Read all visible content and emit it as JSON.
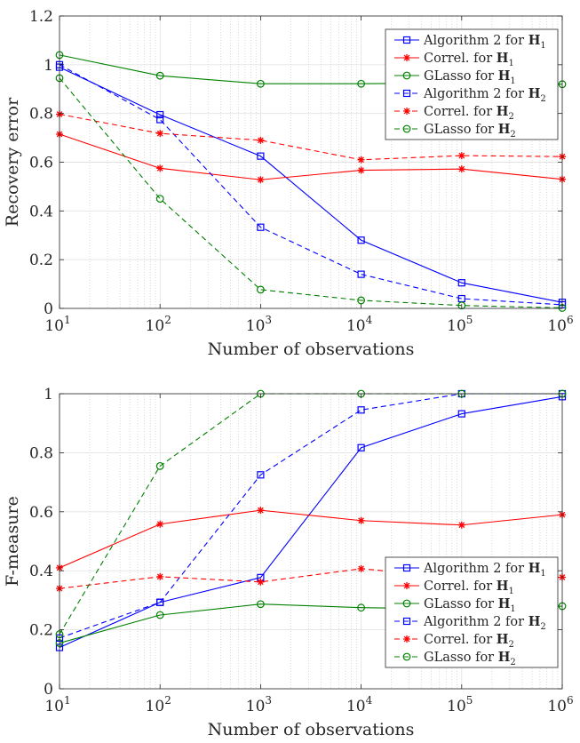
{
  "chart_data": [
    {
      "type": "line",
      "xlabel": "Number of observations",
      "ylabel": "Recovery error",
      "xscale": "log",
      "xlim": [
        10,
        1000000
      ],
      "ylim": [
        0,
        1.2
      ],
      "x_ticks": [
        {
          "value": 10,
          "base": "10",
          "exp": "1"
        },
        {
          "value": 100,
          "base": "10",
          "exp": "2"
        },
        {
          "value": 1000,
          "base": "10",
          "exp": "3"
        },
        {
          "value": 10000,
          "base": "10",
          "exp": "4"
        },
        {
          "value": 100000,
          "base": "10",
          "exp": "5"
        },
        {
          "value": 1000000,
          "base": "10",
          "exp": "6"
        }
      ],
      "y_ticks": [
        {
          "value": 0,
          "label": "0"
        },
        {
          "value": 0.2,
          "label": "0.2"
        },
        {
          "value": 0.4,
          "label": "0.4"
        },
        {
          "value": 0.6,
          "label": "0.6"
        },
        {
          "value": 0.8,
          "label": "0.8"
        },
        {
          "value": 1,
          "label": "1"
        },
        {
          "value": 1.2,
          "label": "1.2"
        }
      ],
      "grid": true,
      "legend_position": "top-right",
      "x": [
        10,
        100,
        1000,
        10000,
        100000,
        1000000
      ],
      "series": [
        {
          "name": "Algorithm 2 for",
          "bold": "H",
          "sub": "1",
          "color": "#0000ff",
          "dash": "solid",
          "marker": "square",
          "values": [
            0.99,
            0.795,
            0.625,
            0.28,
            0.105,
            0.025
          ]
        },
        {
          "name": "Correl. for",
          "bold": "H",
          "sub": "1",
          "color": "#ff0000",
          "dash": "solid",
          "marker": "star",
          "values": [
            0.715,
            0.575,
            0.528,
            0.567,
            0.572,
            0.53
          ]
        },
        {
          "name": "GLasso for",
          "bold": "H",
          "sub": "1",
          "color": "#008000",
          "dash": "solid",
          "marker": "circle",
          "values": [
            1.04,
            0.955,
            0.922,
            0.922,
            0.925,
            0.92
          ]
        },
        {
          "name": "Algorithm 2 for",
          "bold": "H",
          "sub": "2",
          "color": "#0000ff",
          "dash": "dashed",
          "marker": "square",
          "values": [
            1.0,
            0.775,
            0.333,
            0.14,
            0.04,
            0.015
          ]
        },
        {
          "name": "Correl. for",
          "bold": "H",
          "sub": "2",
          "color": "#ff0000",
          "dash": "dashed",
          "marker": "star",
          "values": [
            0.797,
            0.718,
            0.69,
            0.61,
            0.627,
            0.623
          ]
        },
        {
          "name": "GLasso for",
          "bold": "H",
          "sub": "2",
          "color": "#008000",
          "dash": "dashed",
          "marker": "circle",
          "values": [
            0.945,
            0.45,
            0.077,
            0.033,
            0.012,
            0.002
          ]
        }
      ]
    },
    {
      "type": "line",
      "xlabel": "Number of observations",
      "ylabel": "F-measure",
      "xscale": "log",
      "xlim": [
        10,
        1000000
      ],
      "ylim": [
        0,
        1
      ],
      "x_ticks": [
        {
          "value": 10,
          "base": "10",
          "exp": "1"
        },
        {
          "value": 100,
          "base": "10",
          "exp": "2"
        },
        {
          "value": 1000,
          "base": "10",
          "exp": "3"
        },
        {
          "value": 10000,
          "base": "10",
          "exp": "4"
        },
        {
          "value": 100000,
          "base": "10",
          "exp": "5"
        },
        {
          "value": 1000000,
          "base": "10",
          "exp": "6"
        }
      ],
      "y_ticks": [
        {
          "value": 0,
          "label": "0"
        },
        {
          "value": 0.2,
          "label": "0.2"
        },
        {
          "value": 0.4,
          "label": "0.4"
        },
        {
          "value": 0.6,
          "label": "0.6"
        },
        {
          "value": 0.8,
          "label": "0.8"
        },
        {
          "value": 1,
          "label": "1"
        }
      ],
      "grid": true,
      "legend_position": "bottom-right",
      "x": [
        10,
        100,
        1000,
        10000,
        100000,
        1000000
      ],
      "series": [
        {
          "name": "Algorithm 2 for",
          "bold": "H",
          "sub": "1",
          "color": "#0000ff",
          "dash": "solid",
          "marker": "square",
          "values": [
            0.14,
            0.293,
            0.377,
            0.817,
            0.932,
            0.99
          ]
        },
        {
          "name": "Correl. for",
          "bold": "H",
          "sub": "1",
          "color": "#ff0000",
          "dash": "solid",
          "marker": "star",
          "values": [
            0.41,
            0.558,
            0.605,
            0.57,
            0.555,
            0.59
          ]
        },
        {
          "name": "GLasso for",
          "bold": "H",
          "sub": "1",
          "color": "#008000",
          "dash": "solid",
          "marker": "circle",
          "values": [
            0.155,
            0.25,
            0.287,
            0.275,
            0.27,
            0.28
          ]
        },
        {
          "name": "Algorithm 2 for",
          "bold": "H",
          "sub": "2",
          "color": "#0000ff",
          "dash": "dashed",
          "marker": "square",
          "values": [
            0.172,
            0.293,
            0.725,
            0.945,
            1.0,
            1.0
          ]
        },
        {
          "name": "Correl. for",
          "bold": "H",
          "sub": "2",
          "color": "#ff0000",
          "dash": "dashed",
          "marker": "star",
          "values": [
            0.34,
            0.38,
            0.362,
            0.407,
            0.375,
            0.378
          ]
        },
        {
          "name": "GLasso for",
          "bold": "H",
          "sub": "2",
          "color": "#008000",
          "dash": "dashed",
          "marker": "circle",
          "values": [
            0.185,
            0.755,
            1.0,
            1.0,
            1.0,
            1.0
          ]
        }
      ]
    }
  ]
}
